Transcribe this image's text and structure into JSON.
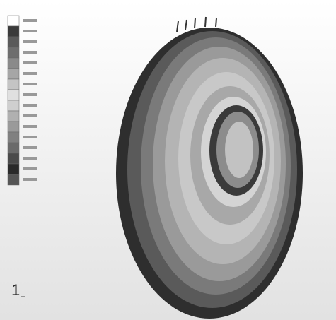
{
  "axis_triad": {
    "label": "1"
  }
}
